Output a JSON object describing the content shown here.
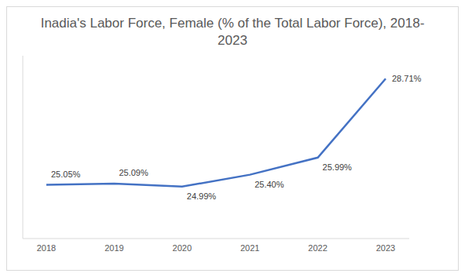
{
  "chart_data": {
    "type": "line",
    "title": "Inadia's Labor Force, Female (% of the Total Labor Force), 2018-2023",
    "categories": [
      "2018",
      "2019",
      "2020",
      "2021",
      "2022",
      "2023"
    ],
    "values": [
      25.05,
      25.09,
      24.99,
      25.4,
      25.99,
      28.71
    ],
    "value_labels": [
      "25.05%",
      "25.09%",
      "24.99%",
      "25.40%",
      "25.99%",
      "28.71%"
    ],
    "color": "#4472c4",
    "ylim": [
      23.2,
      29.5
    ],
    "grid": false,
    "data_labels": true,
    "tick_labels": "x",
    "marker": "none",
    "line_style": "solid"
  }
}
